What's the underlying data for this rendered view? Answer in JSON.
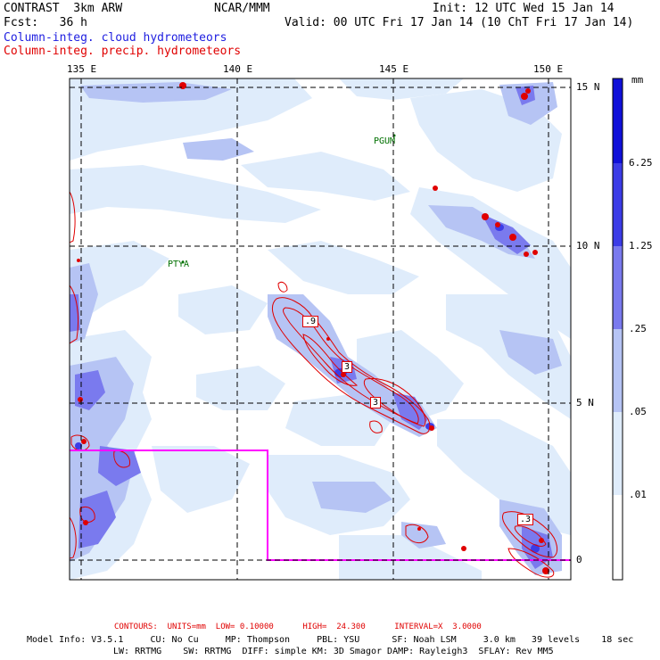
{
  "header": {
    "model": "CONTRAST  3km ARW",
    "org": "NCAR/MMM",
    "init": "Init: 12 UTC Wed 15 Jan 14",
    "fcst": "Fcst:   36 h",
    "valid": "Valid: 00 UTC Fri 17 Jan 14 (10 ChT Fri 17 Jan 14)",
    "legend_cloud": "Column-integ. cloud hydrometeors",
    "legend_precip": "Column-integ. precip. hydrometeors"
  },
  "colors": {
    "cloud_text": "#2020e0",
    "precip_text": "#e00000",
    "contour": "#e00000",
    "box": "#ff00ff",
    "station": "#007000"
  },
  "axes": {
    "longitudes": [
      "135 E",
      "140 E",
      "145 E",
      "150 E"
    ],
    "latitudes": [
      "15 N",
      "10 N",
      "5 N",
      "0"
    ]
  },
  "stations": [
    {
      "name": "PGUM"
    },
    {
      "name": "PTYA"
    }
  ],
  "contour_labels": [
    ".9",
    "3",
    "3",
    ".3"
  ],
  "colorbar": {
    "unit": "mm",
    "levels": [
      "6.25",
      "1.25",
      ".25",
      ".05",
      ".01"
    ],
    "colors": [
      "#1010d8",
      "#3c3ce6",
      "#7a7aee",
      "#b6c4f4",
      "#dfecfb",
      "#ffffff"
    ]
  },
  "footer": {
    "contours": "CONTOURS:  UNITS=mm  LOW= 0.10000      HIGH=  24.300      INTERVAL=X  3.0000",
    "model_info": "Model Info: V3.5.1     CU: No Cu     MP: Thompson     PBL: YSU      SF: Noah LSM     3.0 km   39 levels    18 sec",
    "model_info2": "LW: RRTMG    SW: RRTMG  DIFF: simple KM: 3D Smagor DAMP: Rayleigh3  SFLAY: Rev MM5"
  }
}
